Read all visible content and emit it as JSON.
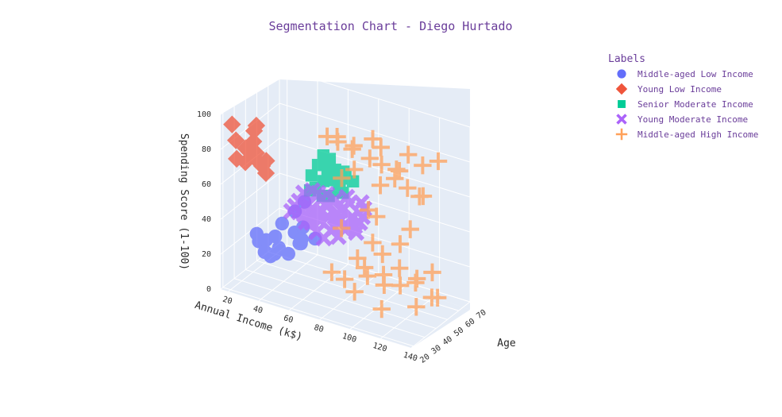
{
  "chart_data": {
    "type": "scatter3d",
    "title": "Segmentation Chart - Diego Hurtado",
    "legend_title": "Labels",
    "legend_position": "top-right",
    "axes": {
      "x": {
        "label": "Annual Income (k$)",
        "ticks": [
          "20",
          "40",
          "60",
          "80",
          "100",
          "120",
          "140"
        ],
        "range": [
          15,
          140
        ]
      },
      "y": {
        "label": "Age",
        "ticks": [
          "20",
          "30",
          "40",
          "50",
          "60",
          "70"
        ],
        "range": [
          18,
          70
        ]
      },
      "z": {
        "label": "Spending Score (1-100)",
        "ticks": [
          "0",
          "20",
          "40",
          "60",
          "80",
          "100"
        ],
        "range": [
          0,
          100
        ]
      }
    },
    "series": [
      {
        "name": "Middle-aged Low Income",
        "marker": "circle",
        "color": "#636efa",
        "points": [
          [
            20,
            45,
            15
          ],
          [
            22,
            48,
            8
          ],
          [
            24,
            50,
            5
          ],
          [
            26,
            42,
            12
          ],
          [
            28,
            52,
            10
          ],
          [
            30,
            46,
            20
          ],
          [
            32,
            55,
            6
          ],
          [
            34,
            40,
            14
          ],
          [
            36,
            44,
            30
          ],
          [
            38,
            58,
            12
          ],
          [
            40,
            50,
            35
          ],
          [
            42,
            47,
            25
          ],
          [
            44,
            53,
            40
          ],
          [
            46,
            49,
            28
          ],
          [
            48,
            57,
            18
          ],
          [
            22,
            60,
            3
          ],
          [
            30,
            38,
            22
          ],
          [
            34,
            62,
            9
          ],
          [
            40,
            56,
            16
          ],
          [
            26,
            35,
            26
          ]
        ]
      },
      {
        "name": "Young Low Income",
        "marker": "diamond",
        "color": "#ef553b",
        "points": [
          [
            18,
            24,
            92
          ],
          [
            22,
            22,
            85
          ],
          [
            24,
            28,
            78
          ],
          [
            26,
            25,
            72
          ],
          [
            28,
            30,
            88
          ],
          [
            30,
            23,
            80
          ],
          [
            32,
            26,
            75
          ],
          [
            34,
            29,
            70
          ],
          [
            36,
            21,
            82
          ],
          [
            38,
            27,
            68
          ],
          [
            28,
            32,
            90
          ],
          [
            24,
            20,
            76
          ],
          [
            32,
            24,
            86
          ],
          [
            36,
            30,
            73
          ]
        ]
      },
      {
        "name": "Senior Moderate Income",
        "marker": "square",
        "color": "#00cc96",
        "points": [
          [
            42,
            62,
            50
          ],
          [
            44,
            65,
            55
          ],
          [
            46,
            60,
            45
          ],
          [
            48,
            68,
            52
          ],
          [
            50,
            63,
            58
          ],
          [
            52,
            66,
            48
          ],
          [
            54,
            61,
            42
          ],
          [
            56,
            64,
            56
          ],
          [
            58,
            67,
            50
          ],
          [
            60,
            62,
            46
          ],
          [
            62,
            65,
            53
          ],
          [
            64,
            69,
            49
          ],
          [
            44,
            58,
            44
          ],
          [
            48,
            70,
            57
          ],
          [
            52,
            59,
            51
          ],
          [
            56,
            68,
            43
          ],
          [
            60,
            66,
            55
          ],
          [
            64,
            60,
            47
          ],
          [
            46,
            67,
            60
          ],
          [
            50,
            61,
            41
          ]
        ]
      },
      {
        "name": "Young Moderate Income",
        "marker": "x",
        "color": "#ab63fa",
        "points": [
          [
            54,
            28,
            50
          ],
          [
            56,
            32,
            48
          ],
          [
            58,
            26,
            55
          ],
          [
            60,
            35,
            52
          ],
          [
            62,
            30,
            45
          ],
          [
            64,
            38,
            58
          ],
          [
            66,
            27,
            50
          ],
          [
            68,
            33,
            47
          ],
          [
            70,
            36,
            54
          ],
          [
            72,
            29,
            49
          ],
          [
            74,
            40,
            56
          ],
          [
            76,
            31,
            51
          ],
          [
            78,
            34,
            44
          ],
          [
            80,
            37,
            53
          ],
          [
            82,
            25,
            48
          ],
          [
            84,
            39,
            57
          ],
          [
            86,
            32,
            46
          ],
          [
            88,
            36,
            52
          ],
          [
            90,
            28,
            50
          ],
          [
            92,
            41,
            55
          ],
          [
            58,
            42,
            43
          ],
          [
            62,
            24,
            60
          ],
          [
            66,
            44,
            49
          ],
          [
            70,
            23,
            57
          ],
          [
            74,
            45,
            42
          ],
          [
            78,
            22,
            59
          ],
          [
            82,
            43,
            46
          ],
          [
            86,
            26,
            54
          ],
          [
            90,
            40,
            47
          ],
          [
            94,
            30,
            51
          ],
          [
            60,
            38,
            40
          ],
          [
            64,
            33,
            62
          ],
          [
            68,
            41,
            44
          ],
          [
            72,
            35,
            61
          ],
          [
            76,
            27,
            41
          ],
          [
            80,
            42,
            58
          ],
          [
            84,
            29,
            43
          ],
          [
            88,
            44,
            56
          ],
          [
            56,
            36,
            57
          ],
          [
            92,
            34,
            45
          ],
          [
            66,
            30,
            48
          ],
          [
            70,
            38,
            52
          ],
          [
            74,
            33,
            50
          ],
          [
            78,
            37,
            47
          ],
          [
            82,
            31,
            55
          ],
          [
            62,
            43,
            51
          ],
          [
            86,
            39,
            49
          ],
          [
            58,
            34,
            46
          ],
          [
            94,
            37,
            53
          ],
          [
            72,
            26,
            44
          ]
        ]
      },
      {
        "name": "Middle-aged High Income",
        "marker": "cross",
        "color": "#ffa15a",
        "points": [
          [
            70,
            38,
            92
          ],
          [
            74,
            42,
            88
          ],
          [
            78,
            36,
            95
          ],
          [
            82,
            44,
            85
          ],
          [
            86,
            40,
            90
          ],
          [
            90,
            35,
            80
          ],
          [
            94,
            46,
            93
          ],
          [
            98,
            38,
            87
          ],
          [
            102,
            43,
            82
          ],
          [
            106,
            37,
            96
          ],
          [
            110,
            48,
            78
          ],
          [
            114,
            40,
            84
          ],
          [
            118,
            45,
            91
          ],
          [
            122,
            39,
            76
          ],
          [
            126,
            47,
            86
          ],
          [
            130,
            42,
            72
          ],
          [
            134,
            50,
            89
          ],
          [
            76,
            34,
            18
          ],
          [
            80,
            40,
            12
          ],
          [
            84,
            46,
            22
          ],
          [
            88,
            38,
            8
          ],
          [
            92,
            44,
            15
          ],
          [
            96,
            36,
            25
          ],
          [
            100,
            48,
            10
          ],
          [
            104,
            42,
            20
          ],
          [
            108,
            35,
            5
          ],
          [
            112,
            46,
            14
          ],
          [
            116,
            40,
            28
          ],
          [
            120,
            50,
            18
          ],
          [
            124,
            44,
            6
          ],
          [
            128,
            38,
            24
          ],
          [
            132,
            47,
            12
          ],
          [
            136,
            42,
            30
          ],
          [
            72,
            48,
            35
          ],
          [
            96,
            50,
            65
          ],
          [
            100,
            34,
            60
          ],
          [
            104,
            52,
            70
          ],
          [
            88,
            54,
            28
          ],
          [
            110,
            33,
            38
          ],
          [
            118,
            55,
            62
          ],
          [
            84,
            32,
            75
          ],
          [
            92,
            52,
            45
          ],
          [
            126,
            36,
            55
          ],
          [
            106,
            54,
            32
          ],
          [
            138,
            44,
            15
          ]
        ]
      }
    ]
  }
}
